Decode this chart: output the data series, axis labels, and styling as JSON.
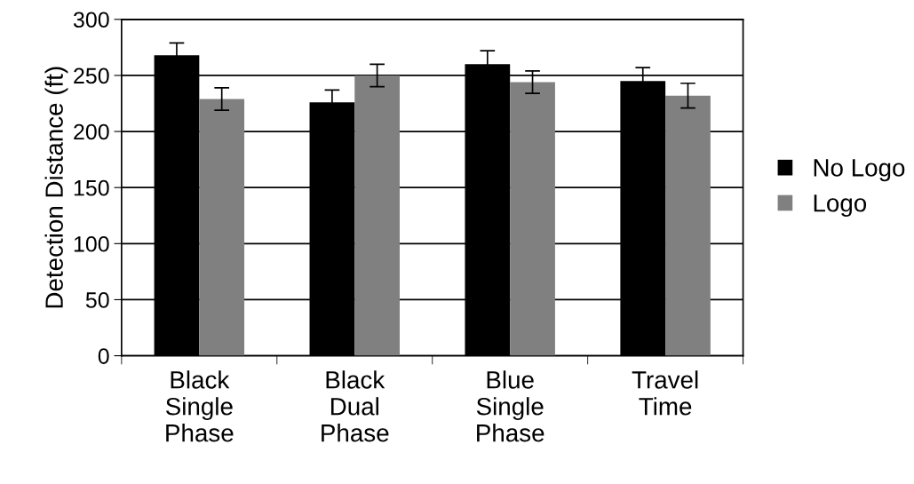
{
  "chart_data": {
    "type": "bar",
    "ylabel": "Detection Distance (ft)",
    "categories": [
      "Black\nSingle\nPhase",
      "Black\nDual\nPhase",
      "Blue\nSingle\nPhase",
      "Travel\nTime"
    ],
    "series": [
      {
        "name": "No Logo",
        "color": "#000000",
        "values": [
          268,
          226,
          260,
          245
        ],
        "errors": [
          11,
          11,
          12,
          12
        ]
      },
      {
        "name": "Logo",
        "color": "#808080",
        "values": [
          229,
          250,
          244,
          232
        ],
        "errors": [
          10,
          10,
          10,
          11
        ]
      }
    ],
    "ylim": [
      0,
      300
    ],
    "yticks": [
      0,
      50,
      100,
      150,
      200,
      250,
      300
    ],
    "grid": "y",
    "legend": "right"
  }
}
